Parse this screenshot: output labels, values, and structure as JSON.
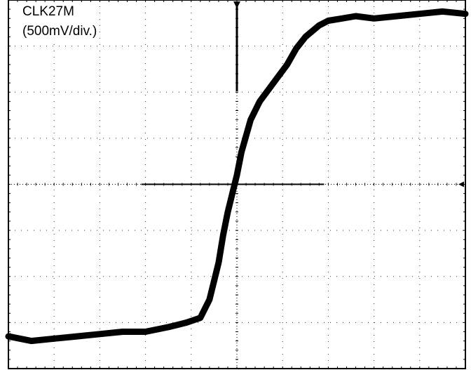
{
  "signal_label": "CLK27M",
  "scale_label": "(500mV/div.)",
  "chart_data": {
    "type": "line",
    "title": "",
    "xlabel": "",
    "ylabel": "",
    "x_divisions": 10,
    "y_divisions": 8,
    "y_units_per_division": "500mV",
    "grid": true,
    "trace_color": "#000000",
    "xlim": [
      0,
      10
    ],
    "ylim": [
      -4,
      4
    ],
    "series": [
      {
        "x": [
          0,
          0.5,
          1,
          1.5,
          2,
          2.5,
          3,
          3.5,
          3.9,
          4.2,
          4.4,
          4.6,
          4.7,
          4.8,
          4.9,
          5.0,
          5.1,
          5.3,
          5.5,
          5.8,
          6.1,
          6.3,
          6.5,
          6.8,
          7.0,
          7.3,
          7.6,
          8.0,
          8.5,
          9.0,
          9.5,
          10
        ],
        "y": [
          -3.3,
          -3.4,
          -3.35,
          -3.3,
          -3.25,
          -3.2,
          -3.2,
          -3.1,
          -3.0,
          -2.9,
          -2.5,
          -1.7,
          -1.1,
          -0.6,
          -0.2,
          0.2,
          0.7,
          1.4,
          1.8,
          2.2,
          2.6,
          2.95,
          3.2,
          3.45,
          3.55,
          3.6,
          3.65,
          3.6,
          3.65,
          3.7,
          3.75,
          3.7
        ]
      }
    ]
  }
}
